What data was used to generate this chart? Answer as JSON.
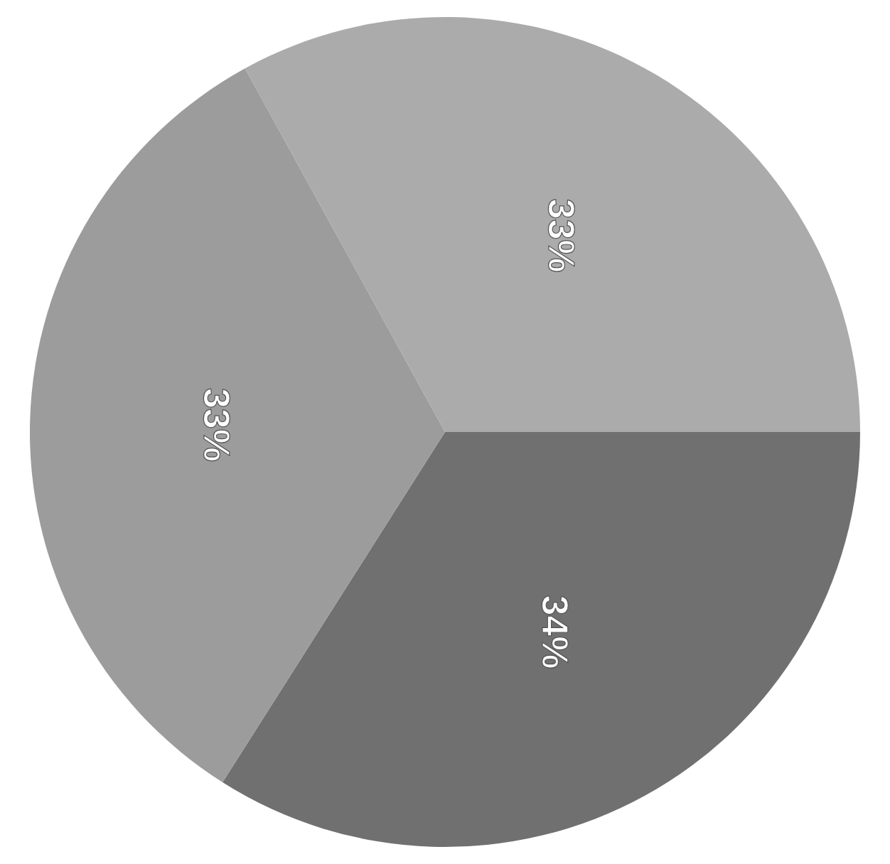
{
  "chart_data": {
    "type": "pie",
    "categories": [
      null,
      null,
      null
    ],
    "values": [
      34,
      33,
      33
    ],
    "value_labels": [
      "34%",
      "33%",
      "33%"
    ],
    "colors": [
      "#707070",
      "#9c9c9c",
      "#ababab"
    ]
  }
}
